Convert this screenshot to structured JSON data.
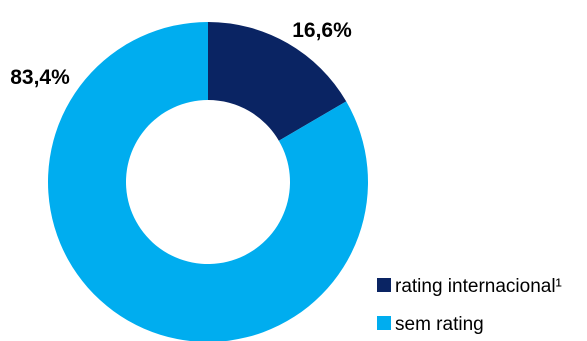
{
  "chart_data": {
    "type": "pie",
    "variant": "donut",
    "title": "",
    "legend_position": "bottom-right",
    "slices": [
      {
        "label": "rating internacional¹",
        "value": 16.6,
        "display": "16,6%",
        "color": "#0a2463"
      },
      {
        "label": "sem rating",
        "value": 83.4,
        "display": "83,4%",
        "color": "#00adef"
      }
    ]
  }
}
